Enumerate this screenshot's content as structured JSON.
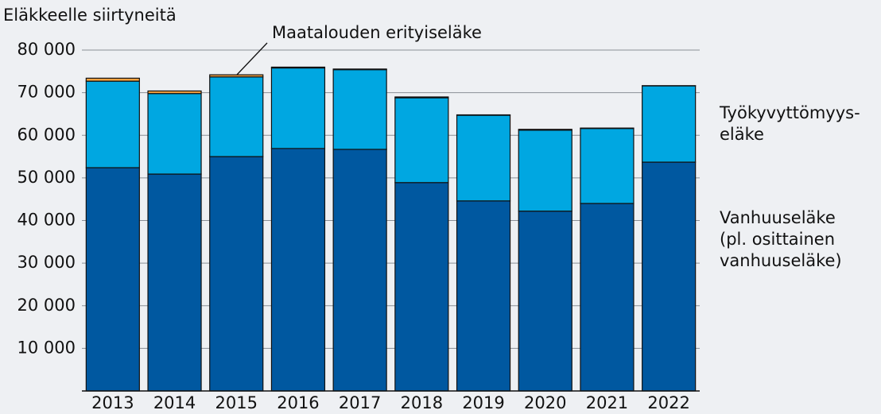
{
  "chart_data": {
    "type": "stacked_bar",
    "y_axis_label": "Eläkkeelle siirtyneitä",
    "categories": [
      "2013",
      "2014",
      "2015",
      "2016",
      "2017",
      "2018",
      "2019",
      "2020",
      "2021",
      "2022"
    ],
    "series": [
      {
        "name": "Vanhuuseläke\n(pl. osittainen\nvanhuuseläke)",
        "color": "#0058a0",
        "values": [
          52400,
          50900,
          55000,
          56900,
          56700,
          48900,
          44600,
          42200,
          44000,
          53700
        ]
      },
      {
        "name": "Työkyvyttömyys-\neläke",
        "color": "#00a7e1",
        "values": [
          20300,
          18900,
          18700,
          18900,
          18700,
          19900,
          20100,
          19000,
          17600,
          17900
        ]
      },
      {
        "name": "Maatalouden erityiseläke",
        "color": "#f4a040",
        "values": [
          700,
          600,
          500,
          200,
          150,
          200,
          100,
          200,
          100,
          50
        ]
      }
    ],
    "ylim": [
      0,
      80000
    ],
    "yticks": [
      {
        "value": 10000,
        "label": "10 000"
      },
      {
        "value": 20000,
        "label": "20 000"
      },
      {
        "value": 30000,
        "label": "30 000"
      },
      {
        "value": 40000,
        "label": "40 000"
      },
      {
        "value": 50000,
        "label": "50 000"
      },
      {
        "value": 60000,
        "label": "60 000"
      },
      {
        "value": 70000,
        "label": "70 000"
      },
      {
        "value": 80000,
        "label": "80 000"
      }
    ],
    "grid": true
  }
}
